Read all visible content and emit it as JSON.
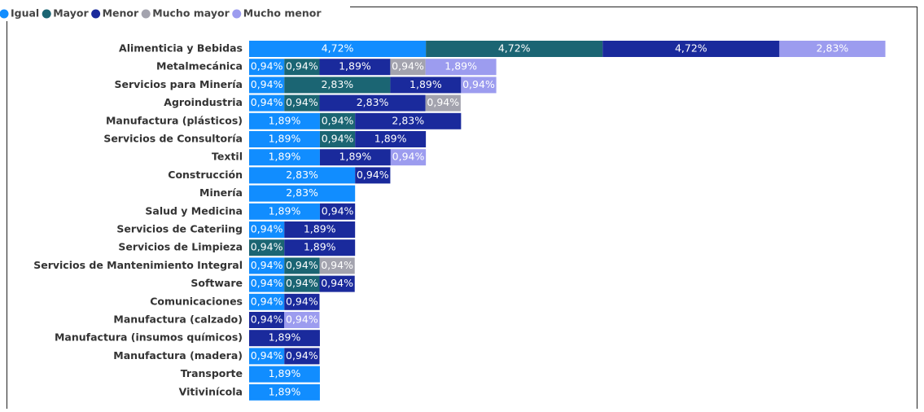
{
  "chart_data": {
    "type": "stacked-bar-horizontal",
    "categories": [
      "Alimenticia y Bebidas",
      "Metalmecánica",
      "Servicios para Minería",
      "Agroindustria",
      "Manufactura (plásticos)",
      "Servicios de Consultoría",
      "Textil",
      "Construcción",
      "Minería",
      "Salud y Medicina",
      "Servicios de Cateriing",
      "Servicios de Limpieza",
      "Servicios de Mantenimiento Integral",
      "Software",
      "Comunicaciones",
      "Manufactura (calzado)",
      "Manufactura (insumos químicos)",
      "Manufactura (madera)",
      "Transporte",
      "Vitivinícola"
    ],
    "series": [
      {
        "name": "Igual",
        "color": "#118dff",
        "values": [
          4.72,
          0.94,
          0.94,
          0.94,
          1.89,
          1.89,
          1.89,
          2.83,
          2.83,
          1.89,
          0.94,
          null,
          0.94,
          0.94,
          0.94,
          null,
          null,
          0.94,
          1.89,
          1.89
        ],
        "value_labels": [
          "4,72%",
          "0,94%",
          "0,94%",
          "0,94%",
          "1,89%",
          "1,89%",
          "1,89%",
          "2,83%",
          "2,83%",
          "1,89%",
          "0,94%",
          null,
          "0,94%",
          "0,94%",
          "0,94%",
          null,
          null,
          "0,94%",
          "1,89%",
          "1,89%"
        ]
      },
      {
        "name": "Mayor",
        "color": "#1b6573",
        "values": [
          4.72,
          0.94,
          2.83,
          0.94,
          0.94,
          0.94,
          null,
          null,
          null,
          null,
          null,
          0.94,
          0.94,
          0.94,
          null,
          null,
          null,
          null,
          null,
          null
        ],
        "value_labels": [
          "4,72%",
          "0,94%",
          "2,83%",
          "0,94%",
          "0,94%",
          "0,94%",
          null,
          null,
          null,
          null,
          null,
          "0,94%",
          "0,94%",
          "0,94%",
          null,
          null,
          null,
          null,
          null,
          null
        ]
      },
      {
        "name": "Menor",
        "color": "#1a2a9c",
        "values": [
          4.72,
          1.89,
          1.89,
          2.83,
          2.83,
          1.89,
          1.89,
          0.94,
          null,
          0.94,
          1.89,
          1.89,
          null,
          0.94,
          0.94,
          0.94,
          1.89,
          0.94,
          null,
          null
        ],
        "value_labels": [
          "4,72%",
          "1,89%",
          "1,89%",
          "2,83%",
          "2,83%",
          "1,89%",
          "1,89%",
          "0,94%",
          null,
          "0,94%",
          "1,89%",
          "1,89%",
          null,
          "0,94%",
          "0,94%",
          "0,94%",
          "1,89%",
          "0,94%",
          null,
          null
        ]
      },
      {
        "name": "Mucho mayor",
        "color": "#a3a3ae",
        "values": [
          null,
          0.94,
          null,
          0.94,
          null,
          null,
          null,
          null,
          null,
          null,
          null,
          null,
          0.94,
          null,
          null,
          null,
          null,
          null,
          null,
          null
        ],
        "value_labels": [
          null,
          "0,94%",
          null,
          "0,94%",
          null,
          null,
          null,
          null,
          null,
          null,
          null,
          null,
          "0,94%",
          null,
          null,
          null,
          null,
          null,
          null,
          null
        ]
      },
      {
        "name": "Mucho menor",
        "color": "#9c9cef",
        "values": [
          2.83,
          1.89,
          0.94,
          null,
          null,
          null,
          0.94,
          null,
          null,
          null,
          null,
          null,
          null,
          null,
          null,
          0.94,
          null,
          null,
          null,
          null
        ],
        "value_labels": [
          "2,83%",
          "1,89%",
          "0,94%",
          null,
          null,
          null,
          "0,94%",
          null,
          null,
          null,
          null,
          null,
          null,
          null,
          null,
          "0,94%",
          null,
          null,
          null,
          null
        ]
      }
    ]
  }
}
